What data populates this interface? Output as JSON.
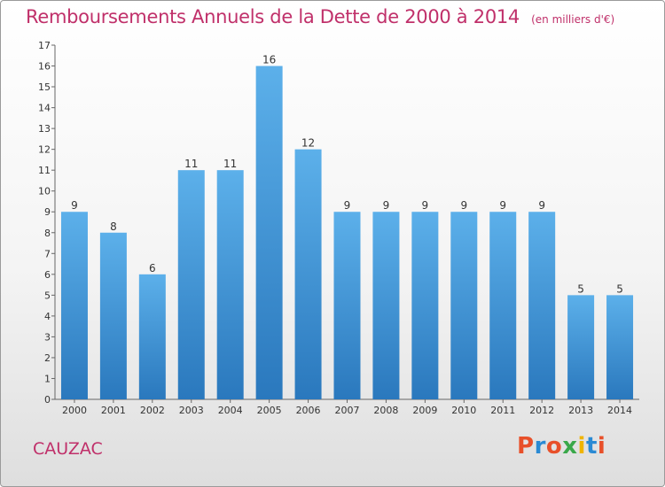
{
  "header": {
    "title": "Remboursements Annuels de la Dette de 2000 à 2014",
    "unit": "(en milliers d'€)"
  },
  "footer": {
    "city": "CAUZAC",
    "logo_text": "Proxiti"
  },
  "colors": {
    "title": "#c0306a",
    "bar_top": "#5cb0ea",
    "bar_bottom": "#2a78bd",
    "logo": [
      "#e8502a",
      "#2a8ad4",
      "#e8502a",
      "#3aa84a",
      "#f0b400",
      "#2a8ad4",
      "#e8502a"
    ]
  },
  "chart_data": {
    "type": "bar",
    "title": "Remboursements Annuels de la Dette de 2000 à 2014",
    "subtitle": "(en milliers d'€)",
    "xlabel": "",
    "ylabel": "",
    "categories": [
      "2000",
      "2001",
      "2002",
      "2003",
      "2004",
      "2005",
      "2006",
      "2007",
      "2008",
      "2009",
      "2010",
      "2011",
      "2012",
      "2013",
      "2014"
    ],
    "values": [
      9,
      8,
      6,
      11,
      11,
      16,
      12,
      9,
      9,
      9,
      9,
      9,
      9,
      5,
      5
    ],
    "ylim": [
      0,
      17
    ],
    "yticks": [
      0,
      1,
      2,
      3,
      4,
      5,
      6,
      7,
      8,
      9,
      10,
      11,
      12,
      13,
      14,
      15,
      16,
      17
    ],
    "grid": false,
    "legend": "none"
  }
}
